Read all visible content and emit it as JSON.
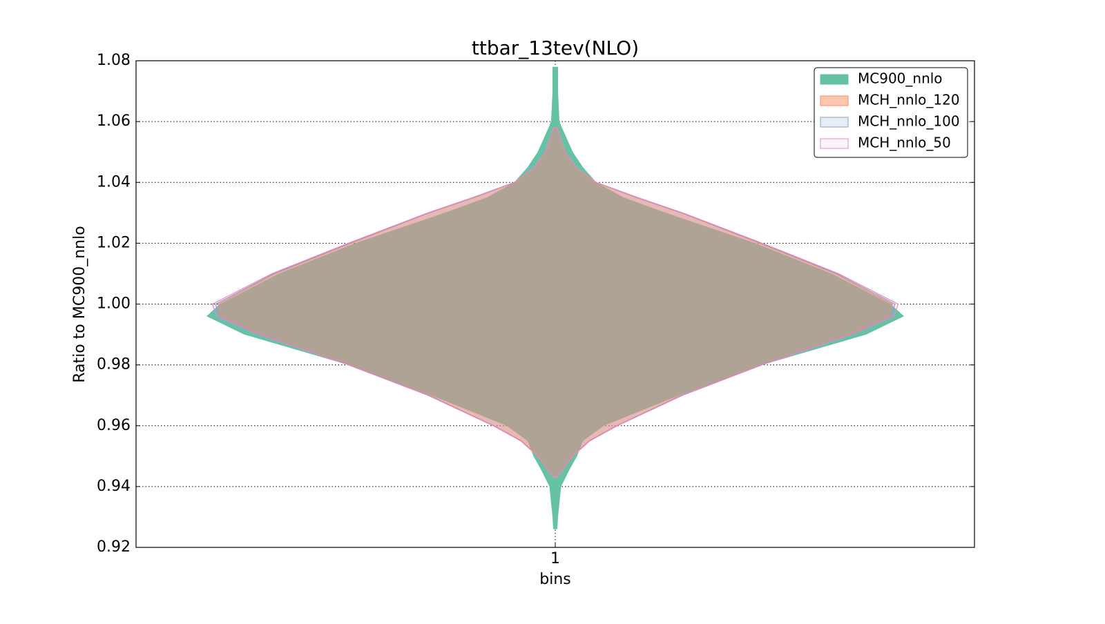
{
  "chart_data": {
    "type": "violin",
    "title": "ttbar_13tev(NLO)",
    "xlabel": "bins",
    "ylabel": "Ratio to MC900_nnlo",
    "categories": [
      "1"
    ],
    "xlim": [
      0.5,
      1.5
    ],
    "xticks": [
      1
    ],
    "ylim": [
      0.92,
      1.08
    ],
    "yticks": [
      0.92,
      0.94,
      0.96,
      0.98,
      {
        "value": 1.0,
        "label": "1.00"
      },
      1.02,
      1.04,
      1.06,
      1.08
    ],
    "grid": true,
    "legend": "upper right",
    "series": [
      {
        "name": "MC900_nnlo",
        "color": "#66c2a5",
        "opacity": 1,
        "y": [
          1.078,
          1.07,
          1.06,
          1.058,
          1.05,
          1.045,
          1.04,
          1.035,
          1.03,
          1.02,
          1.01,
          1.0,
          0.996,
          0.99,
          0.98,
          0.97,
          0.96,
          0.955,
          0.95,
          0.945,
          0.94,
          0.93,
          0.926
        ],
        "half_widths": [
          0.0033,
          0.0033,
          0.005,
          0.008,
          0.021,
          0.033,
          0.049,
          0.082,
          0.132,
          0.239,
          0.33,
          0.4,
          0.416,
          0.371,
          0.247,
          0.148,
          0.058,
          0.033,
          0.026,
          0.016,
          0.007,
          0.0033,
          0.0025
        ]
      },
      {
        "name": "MCH_nnlo_120",
        "color": "#fc8d62",
        "opacity": 0.5,
        "y": [
          1.058,
          1.05,
          1.045,
          1.04,
          1.035,
          1.03,
          1.02,
          1.01,
          1.0,
          0.996,
          0.99,
          0.98,
          0.97,
          0.96,
          0.955,
          0.95,
          0.945,
          0.943
        ],
        "half_widths": [
          0.002,
          0.012,
          0.025,
          0.048,
          0.097,
          0.15,
          0.244,
          0.334,
          0.402,
          0.399,
          0.35,
          0.245,
          0.15,
          0.073,
          0.04,
          0.02,
          0.008,
          0.002
        ]
      },
      {
        "name": "MCH_nnlo_100",
        "color": "#8da0cb",
        "opacity": 0.2,
        "y": [
          1.058,
          1.05,
          1.045,
          1.04,
          1.035,
          1.03,
          1.02,
          1.01,
          1.0,
          0.996,
          0.99,
          0.98,
          0.97,
          0.96,
          0.955,
          0.95,
          0.945,
          0.943
        ],
        "half_widths": [
          0.002,
          0.012,
          0.025,
          0.049,
          0.098,
          0.151,
          0.246,
          0.336,
          0.405,
          0.402,
          0.352,
          0.246,
          0.151,
          0.074,
          0.041,
          0.021,
          0.008,
          0.002
        ]
      },
      {
        "name": "MCH_nnlo_50",
        "color": "#e78ac3",
        "opacity": 0.1,
        "y": [
          1.058,
          1.05,
          1.045,
          1.04,
          1.035,
          1.03,
          1.02,
          1.01,
          1.0,
          0.996,
          0.99,
          0.98,
          0.97,
          0.96,
          0.955,
          0.95,
          0.945,
          0.943
        ],
        "half_widths": [
          0.002,
          0.012,
          0.025,
          0.049,
          0.099,
          0.152,
          0.247,
          0.338,
          0.409,
          0.404,
          0.354,
          0.247,
          0.152,
          0.074,
          0.041,
          0.021,
          0.008,
          0.002
        ]
      }
    ]
  }
}
